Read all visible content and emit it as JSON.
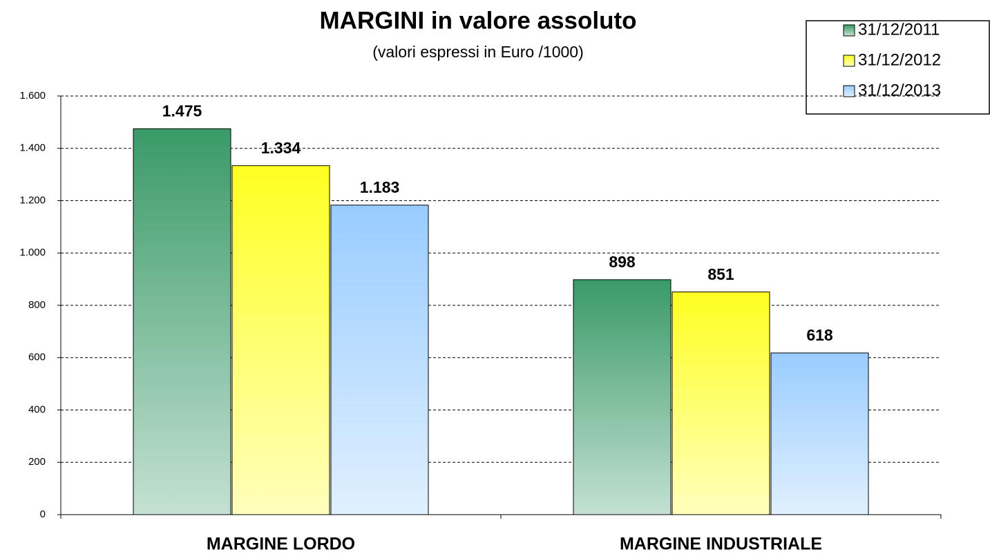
{
  "chart_data": {
    "type": "bar",
    "title": "MARGINI in valore assoluto",
    "subtitle": "(valori espressi in Euro /1000)",
    "categories": [
      "MARGINE LORDO",
      "MARGINE INDUSTRIALE"
    ],
    "series": [
      {
        "name": "31/12/2011",
        "color": "#3a9a68",
        "values": [
          1475,
          898
        ],
        "value_labels": [
          "1.475",
          "898"
        ]
      },
      {
        "name": "31/12/2012",
        "color": "#ffff22",
        "values": [
          1334,
          851
        ],
        "value_labels": [
          "1.334",
          "851"
        ]
      },
      {
        "name": "31/12/2013",
        "color": "#99ccff",
        "values": [
          1183,
          618
        ],
        "value_labels": [
          "1.183",
          "618"
        ]
      }
    ],
    "ylim": [
      0,
      1600
    ],
    "yticks": [
      0,
      200,
      400,
      600,
      800,
      {
        "value": 1000,
        "label": "1.000"
      },
      {
        "value": 1200,
        "label": "1.200"
      },
      {
        "value": 1400,
        "label": "1.400"
      },
      {
        "value": 1600,
        "label": "1.600"
      }
    ],
    "grid": true,
    "legend": "top-right"
  }
}
